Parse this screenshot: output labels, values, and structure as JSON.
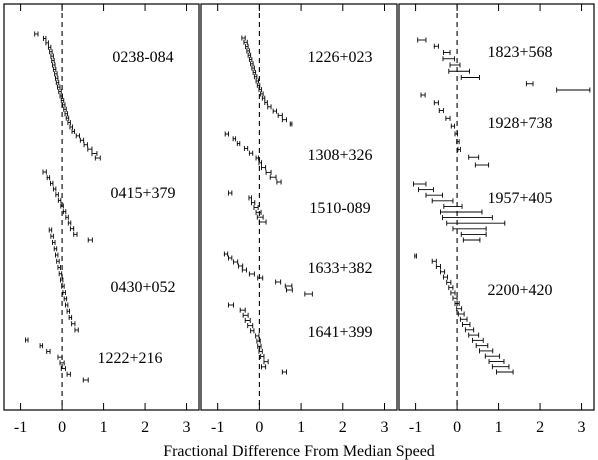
{
  "chart_data": {
    "type": "scatter",
    "xlabel": "Fractional Difference From Median Speed",
    "xlim": [
      -1.4,
      3.3
    ],
    "xticks": [
      -1,
      0,
      1,
      2,
      3
    ],
    "panels": [
      {
        "sources": [
          {
            "name": "0238-084",
            "points": [
              [
                -0.62,
                0.04
              ],
              [
                -0.42,
                0.03
              ],
              [
                -0.36,
                0.03
              ],
              [
                -0.3,
                0.03
              ],
              [
                -0.27,
                0.03
              ],
              [
                -0.24,
                0.03
              ],
              [
                -0.22,
                0.03
              ],
              [
                -0.2,
                0.03
              ],
              [
                -0.18,
                0.03
              ],
              [
                -0.15,
                0.03
              ],
              [
                -0.13,
                0.03
              ],
              [
                -0.11,
                0.03
              ],
              [
                -0.08,
                0.03
              ],
              [
                -0.05,
                0.03
              ],
              [
                -0.02,
                0.03
              ],
              [
                0.01,
                0.03
              ],
              [
                0.04,
                0.03
              ],
              [
                0.07,
                0.03
              ],
              [
                0.1,
                0.03
              ],
              [
                0.13,
                0.03
              ],
              [
                0.17,
                0.03
              ],
              [
                0.22,
                0.03
              ],
              [
                0.27,
                0.03
              ],
              [
                0.38,
                0.04
              ],
              [
                0.48,
                0.04
              ],
              [
                0.57,
                0.04
              ],
              [
                0.67,
                0.05
              ],
              [
                0.78,
                0.06
              ],
              [
                0.86,
                0.06
              ]
            ]
          },
          {
            "name": "0415+379",
            "points": [
              [
                -0.42,
                0.04
              ],
              [
                -0.33,
                0.03
              ],
              [
                -0.25,
                0.03
              ],
              [
                -0.18,
                0.03
              ],
              [
                -0.12,
                0.03
              ],
              [
                -0.06,
                0.03
              ],
              [
                0.0,
                0.03
              ],
              [
                0.06,
                0.03
              ],
              [
                0.12,
                0.03
              ],
              [
                0.18,
                0.03
              ],
              [
                0.24,
                0.04
              ],
              [
                0.32,
                0.04
              ],
              [
                0.68,
                0.05
              ]
            ]
          },
          {
            "name": "0430+052",
            "points": [
              [
                -0.28,
                0.03
              ],
              [
                -0.24,
                0.03
              ],
              [
                -0.2,
                0.03
              ],
              [
                -0.16,
                0.03
              ],
              [
                -0.13,
                0.03
              ],
              [
                -0.1,
                0.03
              ],
              [
                -0.07,
                0.03
              ],
              [
                -0.04,
                0.03
              ],
              [
                -0.01,
                0.03
              ],
              [
                0.02,
                0.03
              ],
              [
                0.05,
                0.03
              ],
              [
                0.08,
                0.03
              ],
              [
                0.11,
                0.03
              ],
              [
                0.15,
                0.03
              ],
              [
                0.2,
                0.03
              ],
              [
                0.27,
                0.04
              ],
              [
                0.35,
                0.04
              ]
            ]
          },
          {
            "name": "1222+216",
            "points": [
              [
                -0.85,
                0.03
              ],
              [
                -0.5,
                0.03
              ],
              [
                -0.33,
                0.04
              ],
              [
                -0.05,
                0.05
              ],
              [
                0.0,
                0.05
              ],
              [
                0.03,
                0.05
              ],
              [
                0.16,
                0.04
              ],
              [
                0.57,
                0.06
              ]
            ]
          }
        ]
      },
      {
        "sources": [
          {
            "name": "1226+023",
            "points": [
              [
                -0.38,
                0.04
              ],
              [
                -0.33,
                0.04
              ],
              [
                -0.3,
                0.03
              ],
              [
                -0.27,
                0.03
              ],
              [
                -0.24,
                0.03
              ],
              [
                -0.21,
                0.03
              ],
              [
                -0.18,
                0.03
              ],
              [
                -0.15,
                0.03
              ],
              [
                -0.12,
                0.03
              ],
              [
                -0.09,
                0.03
              ],
              [
                -0.05,
                0.03
              ],
              [
                -0.02,
                0.03
              ],
              [
                0.02,
                0.03
              ],
              [
                0.06,
                0.03
              ],
              [
                0.1,
                0.03
              ],
              [
                0.16,
                0.03
              ],
              [
                0.24,
                0.04
              ],
              [
                0.37,
                0.04
              ],
              [
                0.5,
                0.05
              ],
              [
                0.6,
                0.05
              ],
              [
                0.76,
                0.02
              ]
            ]
          },
          {
            "name": "1308+326",
            "points": [
              [
                -0.78,
                0.04
              ],
              [
                -0.6,
                0.03
              ],
              [
                -0.5,
                0.03
              ],
              [
                -0.32,
                0.04
              ],
              [
                -0.2,
                0.04
              ],
              [
                -0.05,
                0.03
              ],
              [
                0.02,
                0.03
              ],
              [
                0.1,
                0.05
              ],
              [
                0.22,
                0.06
              ],
              [
                0.33,
                0.07
              ],
              [
                0.47,
                0.05
              ]
            ]
          },
          {
            "name": "1510-089",
            "points": [
              [
                -0.7,
                0.04
              ],
              [
                -0.22,
                0.03
              ],
              [
                -0.15,
                0.04
              ],
              [
                -0.08,
                0.05
              ],
              [
                -0.02,
                0.06
              ],
              [
                0.02,
                0.07
              ],
              [
                0.08,
                0.08
              ]
            ]
          },
          {
            "name": "1633+382",
            "points": [
              [
                -0.8,
                0.04
              ],
              [
                -0.7,
                0.04
              ],
              [
                -0.57,
                0.05
              ],
              [
                -0.45,
                0.05
              ],
              [
                -0.36,
                0.05
              ],
              [
                -0.18,
                0.06
              ],
              [
                0.02,
                0.06
              ],
              [
                0.45,
                0.06
              ],
              [
                0.7,
                0.08
              ],
              [
                0.72,
                0.07
              ],
              [
                1.18,
                0.09
              ]
            ]
          },
          {
            "name": "1641+399",
            "points": [
              [
                -0.68,
                0.06
              ],
              [
                -0.4,
                0.06
              ],
              [
                -0.33,
                0.06
              ],
              [
                -0.28,
                0.06
              ],
              [
                -0.22,
                0.06
              ],
              [
                -0.17,
                0.04
              ],
              [
                -0.05,
                0.04
              ],
              [
                -0.02,
                0.04
              ],
              [
                0.0,
                0.04
              ],
              [
                0.03,
                0.04
              ],
              [
                0.07,
                0.04
              ],
              [
                0.16,
                0.05
              ],
              [
                0.1,
                0.05
              ],
              [
                0.6,
                0.05
              ]
            ]
          }
        ]
      },
      {
        "sources": [
          {
            "name": "1823+568",
            "points": [
              [
                -0.85,
                0.1
              ],
              [
                -0.5,
                0.05
              ],
              [
                -0.25,
                0.08
              ],
              [
                -0.2,
                0.14
              ],
              [
                -0.05,
                0.12
              ],
              [
                0.05,
                0.25
              ],
              [
                0.32,
                0.22
              ],
              [
                1.75,
                0.08
              ],
              [
                2.8,
                0.4
              ]
            ]
          },
          {
            "name": "1928+738",
            "points": [
              [
                -0.82,
                0.05
              ],
              [
                -0.5,
                0.05
              ],
              [
                -0.38,
                0.05
              ],
              [
                -0.22,
                0.05
              ],
              [
                -0.1,
                0.04
              ],
              [
                -0.02,
                0.03
              ],
              [
                0.02,
                0.03
              ],
              [
                0.05,
                0.03
              ],
              [
                0.4,
                0.12
              ],
              [
                0.6,
                0.16
              ]
            ]
          },
          {
            "name": "1957+405",
            "points": [
              [
                -0.9,
                0.15
              ],
              [
                -0.75,
                0.18
              ],
              [
                -0.55,
                0.2
              ],
              [
                -0.35,
                0.25
              ],
              [
                -0.1,
                0.22
              ],
              [
                0.1,
                0.5
              ],
              [
                0.25,
                0.6
              ],
              [
                0.45,
                0.7
              ],
              [
                0.3,
                0.4
              ],
              [
                0.4,
                0.3
              ],
              [
                0.35,
                0.2
              ]
            ]
          },
          {
            "name": "2200+420",
            "points": [
              [
                -1.0,
                0.02
              ],
              [
                -0.55,
                0.05
              ],
              [
                -0.45,
                0.05
              ],
              [
                -0.35,
                0.05
              ],
              [
                -0.28,
                0.05
              ],
              [
                -0.2,
                0.05
              ],
              [
                -0.15,
                0.05
              ],
              [
                -0.1,
                0.05
              ],
              [
                -0.05,
                0.05
              ],
              [
                0.0,
                0.05
              ],
              [
                0.05,
                0.06
              ],
              [
                0.1,
                0.07
              ],
              [
                0.16,
                0.08
              ],
              [
                0.22,
                0.09
              ],
              [
                0.3,
                0.1
              ],
              [
                0.4,
                0.12
              ],
              [
                0.5,
                0.13
              ],
              [
                0.6,
                0.14
              ],
              [
                0.7,
                0.16
              ],
              [
                0.85,
                0.17
              ],
              [
                0.95,
                0.18
              ],
              [
                1.05,
                0.2
              ],
              [
                1.15,
                0.2
              ]
            ]
          }
        ]
      }
    ]
  }
}
